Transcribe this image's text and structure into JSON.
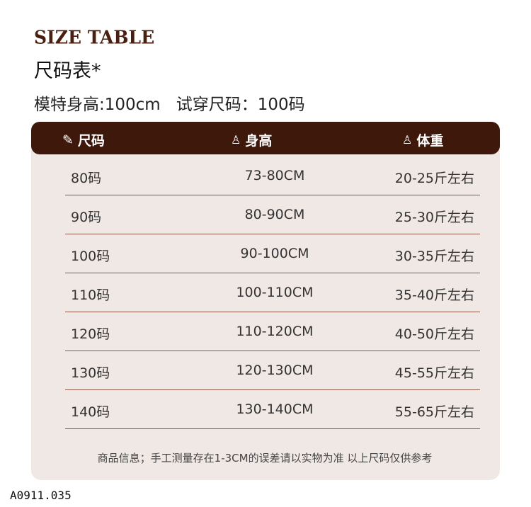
{
  "title_en": "SIZE TABLE",
  "title_cn": "尺码表*",
  "model": {
    "height": "模特身高:100cm",
    "size": "试穿尺码：100码"
  },
  "header": {
    "size": "尺码",
    "height": "身高",
    "weight": "体重",
    "icons": [
      "ruler-pencil-icon",
      "height-measure-icon",
      "scale-person-icon"
    ]
  },
  "rows": [
    {
      "size": "80码",
      "height": "73-80CM",
      "weight": "20-25斤左右"
    },
    {
      "size": "90码",
      "height": "80-90CM",
      "weight": "25-30斤左右"
    },
    {
      "size": "100码",
      "height": "90-100CM",
      "weight": "30-35斤左右"
    },
    {
      "size": "110码",
      "height": "100-110CM",
      "weight": "35-40斤左右"
    },
    {
      "size": "120码",
      "height": "110-120CM",
      "weight": "40-50斤左右"
    },
    {
      "size": "130码",
      "height": "120-130CM",
      "weight": "45-55斤左右"
    },
    {
      "size": "140码",
      "height": "130-140CM",
      "weight": "55-65斤左右"
    }
  ],
  "footer": "商品信息；手工测量存在1-3CM的误差请以实物为准 以上尺码仅供参考",
  "code": "A0911.035",
  "colors": {
    "header_bg": "#3e180a",
    "panel_bg": "#efe8e4",
    "title": "#4a1f10"
  }
}
